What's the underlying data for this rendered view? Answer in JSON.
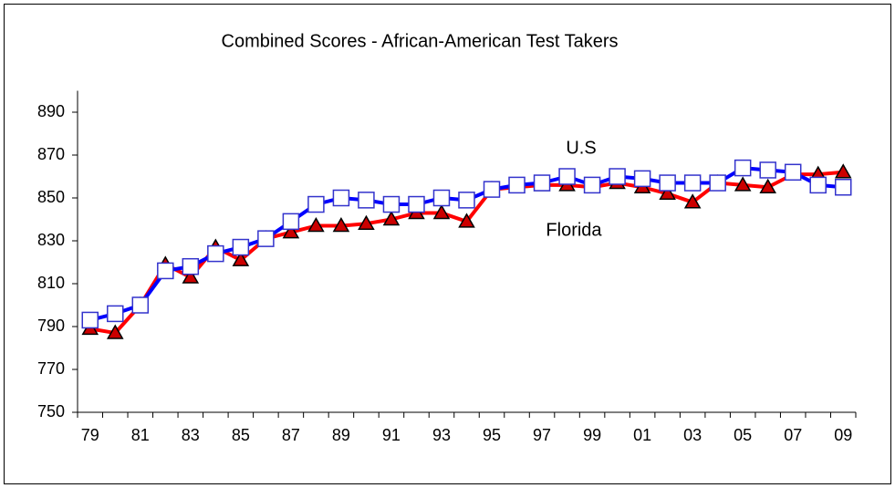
{
  "chart_data": {
    "type": "line",
    "title": "Combined Scores - African-American Test Takers",
    "categories": [
      "79",
      null,
      "81",
      null,
      "83",
      null,
      "85",
      null,
      "87",
      null,
      "89",
      null,
      "91",
      null,
      "93",
      null,
      "95",
      null,
      "97",
      null,
      "99",
      null,
      "01",
      null,
      "03",
      null,
      "05",
      null,
      "07",
      null,
      "09"
    ],
    "series": [
      {
        "name": "Florida",
        "color": "#ff0000",
        "marker_color": "#cc0000",
        "values": [
          789,
          787,
          800,
          819,
          813,
          827,
          821,
          831,
          834,
          837,
          837,
          838,
          840,
          843,
          843,
          839,
          854,
          855,
          856,
          856,
          855,
          857,
          855,
          852,
          848,
          857,
          856,
          855,
          861,
          861,
          862
        ]
      },
      {
        "name": "U.S",
        "color": "#0000ff",
        "marker_color": "#3333cc",
        "values": [
          793,
          796,
          800,
          816,
          818,
          824,
          827,
          831,
          839,
          847,
          850,
          849,
          847,
          847,
          850,
          849,
          854,
          856,
          857,
          860,
          856,
          860,
          859,
          857,
          857,
          857,
          864,
          863,
          862,
          856,
          855
        ]
      }
    ],
    "ylim": [
      750,
      900
    ],
    "yticks": [
      750,
      770,
      790,
      810,
      830,
      850,
      870,
      890
    ]
  }
}
